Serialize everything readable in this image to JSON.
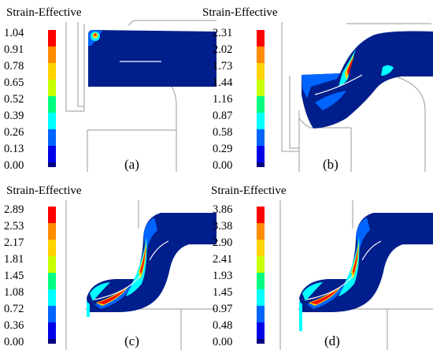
{
  "figure": {
    "colorscale": [
      "#000080",
      "#0000e6",
      "#0064ff",
      "#00ffff",
      "#00ff80",
      "#c8ff00",
      "#ffd200",
      "#ff8c00",
      "#ff0000"
    ],
    "mesh_color": "#001e8c",
    "panels": [
      {
        "id": "a",
        "title": "Strain-Effective",
        "ticks": [
          "1.04",
          "0.91",
          "0.78",
          "0.65",
          "0.52",
          "0.39",
          "0.26",
          "0.13",
          "0.00"
        ],
        "label": "(a)"
      },
      {
        "id": "b",
        "title": "Strain-Effective",
        "ticks": [
          "2.31",
          "2.02",
          "1.73",
          "1.44",
          "1.16",
          "0.87",
          "0.58",
          "0.29",
          "0.00"
        ],
        "label": "(b)"
      },
      {
        "id": "c",
        "title": "Strain-Effective",
        "ticks": [
          "2.89",
          "2.53",
          "2.17",
          "1.81",
          "1.45",
          "1.08",
          "0.72",
          "0.36",
          "0.00"
        ],
        "label": "(c)"
      },
      {
        "id": "d",
        "title": "Strain-Effective",
        "ticks": [
          "3.86",
          "3.38",
          "2.90",
          "2.41",
          "1.93",
          "1.45",
          "0.97",
          "0.48",
          "0.00"
        ],
        "label": "(d)"
      }
    ]
  }
}
